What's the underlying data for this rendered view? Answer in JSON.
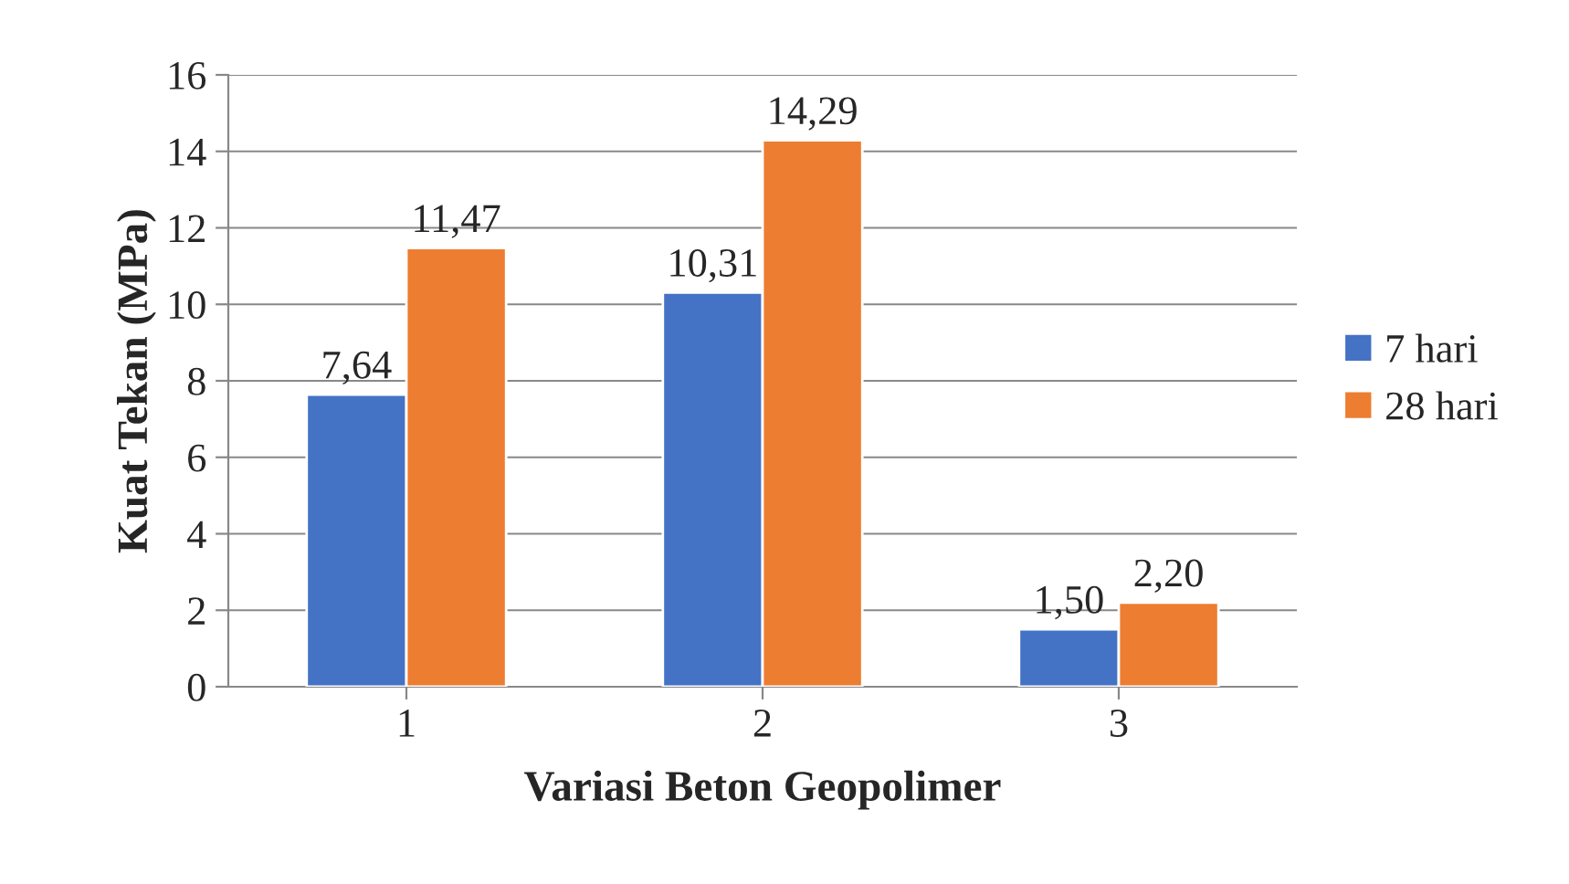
{
  "chart_data": {
    "type": "bar",
    "xlabel": "Variasi Beton Geopolimer",
    "ylabel": "Kuat Tekan (MPa)",
    "categories": [
      "1",
      "2",
      "3"
    ],
    "series": [
      {
        "name": "7 hari",
        "color": "#4472c4",
        "values": [
          7.64,
          10.31,
          1.5
        ],
        "value_labels": [
          "7,64",
          "10,31",
          "1,50"
        ]
      },
      {
        "name": "28 hari",
        "color": "#ed7d31",
        "values": [
          11.47,
          14.29,
          2.2
        ],
        "value_labels": [
          "11,47",
          "14,29",
          "2,20"
        ]
      }
    ],
    "ylim": [
      0,
      16
    ],
    "yticks": [
      0,
      2,
      4,
      6,
      8,
      10,
      12,
      14,
      16
    ],
    "grid": "y",
    "legend": "right"
  }
}
